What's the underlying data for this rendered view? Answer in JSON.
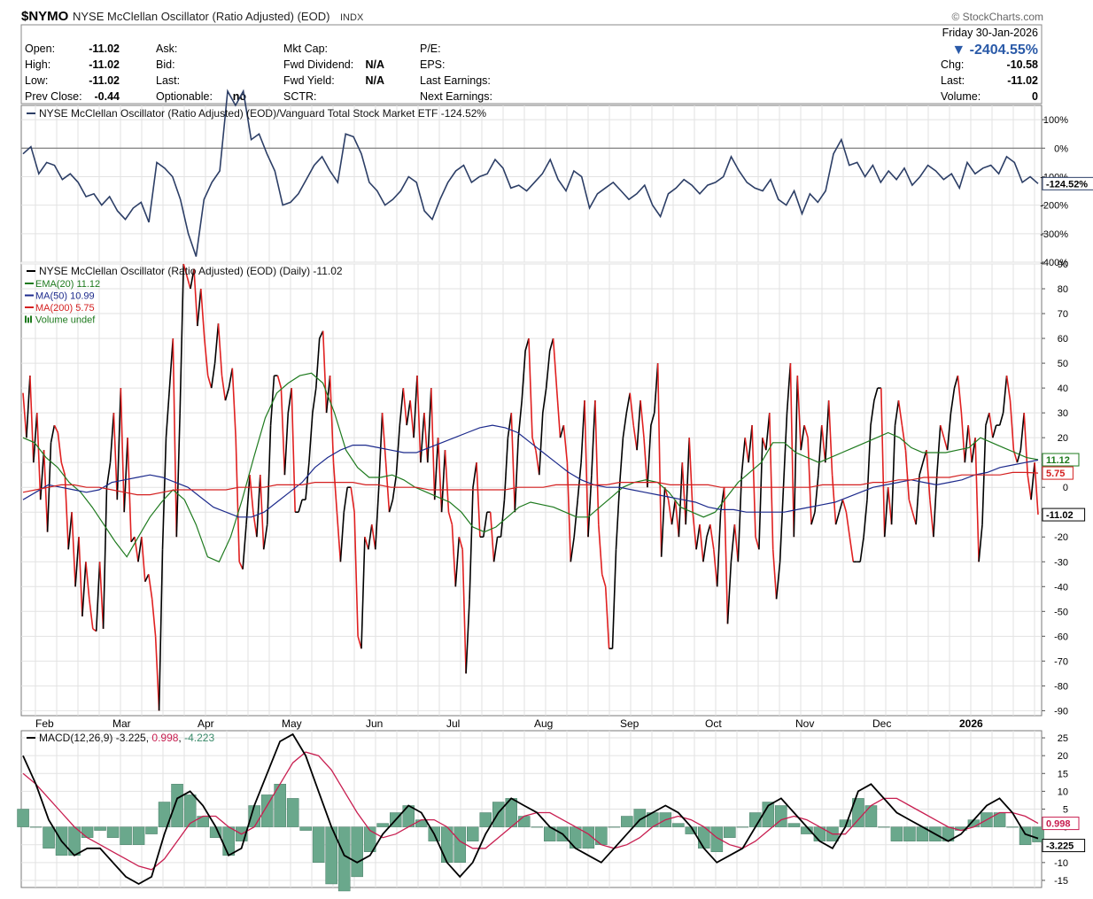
{
  "header": {
    "symbol": "$NYMO",
    "name": "NYSE McClellan Oscillator (Ratio Adjusted) (EOD)",
    "exchange": "INDX",
    "brand": "© StockCharts.com",
    "date": "Friday 30-Jan-2026",
    "pct_change": "▼ -2404.55%",
    "down_color": "#2a5aa8"
  },
  "quote": {
    "open_label": "Open:",
    "open": "-11.02",
    "high_label": "High:",
    "high": "-11.02",
    "low_label": "Low:",
    "low": "-11.02",
    "prev_close_label": "Prev Close:",
    "prev_close": "-0.44",
    "ask_label": "Ask:",
    "bid_label": "Bid:",
    "last_label": "Last:",
    "optionable_label": "Optionable:",
    "optionable": "no",
    "mkt_cap_label": "Mkt Cap:",
    "fwd_dividend_label": "Fwd Dividend:",
    "fwd_dividend": "N/A",
    "fwd_yield_label": "Fwd Yield:",
    "fwd_yield": "N/A",
    "sctr_label": "SCTR:",
    "pe_label": "P/E:",
    "eps_label": "EPS:",
    "last_earnings_label": "Last Earnings:",
    "next_earnings_label": "Next Earnings:",
    "chg_label": "Chg:",
    "chg": "-10.58",
    "last2_label": "Last:",
    "last": "-11.02",
    "volume_label": "Volume:",
    "volume": "0"
  },
  "chart_data": [
    {
      "type": "line",
      "panel": "relative-strength",
      "title": "NYSE McClellan Oscillator (Ratio Adjusted) (EOD)/Vanguard Total Stock Market ETF -124.52%",
      "y_ticks": [
        "100%",
        "0%",
        "-100%",
        "-200%",
        "-300%",
        "-400%"
      ],
      "ylim": [
        -400,
        150
      ],
      "last_value_label": "-124.52%",
      "series": [
        {
          "name": "NYSE McClellan Oscillator (Ratio Adjusted) (EOD)/Vanguard Total Stock Market ETF",
          "color": "#2c3e66",
          "values": [
            -20,
            5,
            -90,
            -50,
            -60,
            -110,
            -90,
            -120,
            -170,
            -160,
            -200,
            -170,
            -220,
            -250,
            -210,
            -190,
            -260,
            -50,
            -70,
            -100,
            -180,
            -300,
            -380,
            -180,
            -120,
            -80,
            200,
            150,
            200,
            30,
            50,
            -20,
            -80,
            -200,
            -190,
            -160,
            -110,
            -60,
            -30,
            -80,
            -120,
            50,
            40,
            -20,
            -120,
            -150,
            -200,
            -180,
            -150,
            -100,
            -120,
            -220,
            -250,
            -180,
            -120,
            -80,
            -60,
            -120,
            -100,
            -90,
            -40,
            -70,
            -140,
            -130,
            -150,
            -120,
            -90,
            -40,
            -110,
            -150,
            -80,
            -100,
            -210,
            -160,
            -140,
            -120,
            -150,
            -180,
            -160,
            -130,
            -200,
            -240,
            -160,
            -140,
            -110,
            -130,
            -160,
            -130,
            -120,
            -100,
            -30,
            -80,
            -120,
            -140,
            -150,
            -110,
            -180,
            -200,
            -150,
            -230,
            -160,
            -190,
            -150,
            -20,
            30,
            -60,
            -50,
            -100,
            -60,
            -120,
            -80,
            -110,
            -70,
            -130,
            -100,
            -60,
            -80,
            -110,
            -90,
            -140,
            -50,
            -90,
            -70,
            -60,
            -90,
            -30,
            -50,
            -120,
            -100,
            -124.52
          ]
        }
      ]
    },
    {
      "type": "line",
      "panel": "main",
      "title": "NYSE McClellan Oscillator (Ratio Adjusted) (EOD) (Daily) -11.02",
      "x_ticks": [
        "Feb",
        "Mar",
        "Apr",
        "May",
        "Jun",
        "Jul",
        "Aug",
        "Sep",
        "Oct",
        "Nov",
        "Dec",
        "2026"
      ],
      "y_ticks": [
        "90",
        "80",
        "70",
        "60",
        "50",
        "40",
        "30",
        "20",
        "10",
        "0",
        "-10",
        "-20",
        "-30",
        "-40",
        "-50",
        "-60",
        "-70",
        "-80",
        "-90"
      ],
      "ylim": [
        -92,
        90
      ],
      "grid": true,
      "up_color": "#000000",
      "down_color": "#e02020",
      "series": [
        {
          "name": "NYSE McClellan Oscillator (Ratio Adjusted) (EOD) (Daily)",
          "label": "NYSE McClellan Oscillator (Ratio Adjusted) (EOD) (Daily) -11.02",
          "color": "#000000",
          "values": [
            38,
            20,
            45,
            10,
            30,
            -5,
            15,
            -18,
            18,
            25,
            22,
            10,
            5,
            -25,
            -10,
            -40,
            -20,
            -52,
            -30,
            -45,
            -57,
            -58,
            -30,
            -57,
            0,
            10,
            30,
            -5,
            40,
            -10,
            20,
            -22,
            -20,
            -30,
            -20,
            -38,
            -35,
            -45,
            -60,
            -90,
            -25,
            20,
            40,
            60,
            -20,
            30,
            90,
            85,
            80,
            88,
            65,
            80,
            60,
            45,
            40,
            50,
            66,
            45,
            35,
            40,
            48,
            20,
            -30,
            -33,
            -15,
            5,
            -10,
            -20,
            5,
            -25,
            -15,
            25,
            45,
            45,
            40,
            5,
            30,
            40,
            -10,
            -10,
            -5,
            -5,
            10,
            30,
            40,
            60,
            63,
            30,
            45,
            10,
            -10,
            -30,
            -10,
            0,
            0,
            -10,
            -60,
            -65,
            -20,
            -25,
            -15,
            -25,
            0,
            30,
            10,
            -10,
            -5,
            5,
            25,
            40,
            25,
            35,
            20,
            45,
            10,
            30,
            10,
            40,
            -5,
            20,
            -10,
            15,
            -10,
            -15,
            -40,
            -20,
            -25,
            -75,
            -45,
            0,
            10,
            -20,
            -20,
            -10,
            -10,
            -30,
            -20,
            -20,
            -5,
            20,
            30,
            -10,
            20,
            35,
            55,
            60,
            20,
            15,
            5,
            30,
            40,
            55,
            60,
            40,
            20,
            25,
            10,
            -30,
            -20,
            -5,
            10,
            35,
            -20,
            5,
            35,
            -15,
            -35,
            -40,
            -65,
            -65,
            -25,
            0,
            20,
            30,
            38,
            25,
            15,
            35,
            20,
            0,
            25,
            30,
            50,
            -28,
            0,
            -5,
            -15,
            -5,
            -20,
            10,
            -15,
            20,
            -10,
            -25,
            -15,
            -30,
            -20,
            -15,
            -25,
            -40,
            -10,
            0,
            -55,
            -30,
            -15,
            -30,
            5,
            20,
            10,
            25,
            -20,
            -25,
            20,
            15,
            30,
            -25,
            -45,
            -30,
            0,
            30,
            50,
            -20,
            45,
            15,
            25,
            20,
            -15,
            -10,
            5,
            25,
            10,
            35,
            5,
            -15,
            -10,
            -5,
            -10,
            -20,
            -30,
            -30,
            -30,
            -20,
            -5,
            25,
            35,
            40,
            40,
            -20,
            0,
            -15,
            25,
            35,
            25,
            15,
            -5,
            -10,
            -15,
            5,
            10,
            15,
            -5,
            -20,
            5,
            25,
            20,
            15,
            30,
            40,
            45,
            30,
            10,
            25,
            10,
            20,
            -30,
            -15,
            25,
            30,
            20,
            25,
            25,
            30,
            45,
            35,
            15,
            10,
            15,
            30,
            5,
            -5,
            10,
            -11.02
          ]
        },
        {
          "name": "EMA(20)",
          "label": "EMA(20) 11.12",
          "color": "#1e7a1e",
          "last_value_label": "11.12",
          "values": [
            20,
            18,
            12,
            8,
            2,
            -2,
            -8,
            -15,
            -22,
            -28,
            -20,
            -12,
            -6,
            -1,
            -5,
            -15,
            -28,
            -30,
            -20,
            -5,
            12,
            28,
            38,
            42,
            45,
            46,
            42,
            30,
            15,
            8,
            4,
            4,
            5,
            3,
            0,
            -2,
            -4,
            -6,
            -10,
            -16,
            -18,
            -16,
            -12,
            -8,
            -6,
            -7,
            -8,
            -10,
            -12,
            -12,
            -8,
            -4,
            0,
            2,
            3,
            2,
            -2,
            -8,
            -10,
            -12,
            -10,
            -4,
            2,
            6,
            10,
            18,
            18,
            14,
            12,
            10,
            12,
            14,
            16,
            18,
            20,
            22,
            20,
            16,
            14,
            14,
            14,
            15,
            16,
            20,
            18,
            16,
            14,
            12,
            11.12
          ]
        },
        {
          "name": "MA(50)",
          "label": "MA(50) 10.99",
          "color": "#1c2a8c",
          "last_value_label": "",
          "values": [
            -5,
            -2,
            1,
            0,
            -1,
            -2,
            -1,
            2,
            3,
            4,
            5,
            4,
            2,
            0,
            -4,
            -8,
            -10,
            -12,
            -12,
            -10,
            -6,
            -2,
            2,
            8,
            12,
            15,
            17,
            17,
            16,
            15,
            14,
            14,
            16,
            18,
            20,
            22,
            24,
            25,
            24,
            22,
            18,
            14,
            10,
            6,
            3,
            1,
            0,
            0,
            -1,
            -2,
            -3,
            -4,
            -5,
            -6,
            -8,
            -9,
            -9,
            -10,
            -10,
            -10,
            -10,
            -9,
            -8,
            -7,
            -6,
            -4,
            -2,
            0,
            1,
            2,
            3,
            2,
            1,
            2,
            3,
            5,
            6,
            8,
            9,
            10,
            10.99
          ]
        },
        {
          "name": "MA(200)",
          "label": "MA(200) 5.75",
          "color": "#d42020",
          "last_value_label": "5.75",
          "values": [
            -2,
            -1,
            0,
            1,
            1,
            0,
            0,
            -1,
            -2,
            -3,
            -3,
            -2,
            -1,
            -1,
            -1,
            -1,
            -1,
            0,
            0,
            0,
            1,
            1,
            1,
            2,
            2,
            2,
            2,
            1,
            1,
            0,
            0,
            0,
            -1,
            -1,
            -1,
            -1,
            -1,
            -1,
            -1,
            0,
            0,
            0,
            1,
            1,
            1,
            1,
            1,
            2,
            2,
            2,
            2,
            1,
            1,
            1,
            1,
            0,
            0,
            0,
            0,
            0,
            0,
            0,
            0,
            1,
            1,
            1,
            1,
            2,
            2,
            3,
            3,
            4,
            4,
            4,
            5,
            5,
            5,
            5,
            6,
            6,
            5.75
          ]
        }
      ],
      "legend": [
        "EMA(20) 11.12",
        "MA(50) 10.99",
        "MA(200) 5.75",
        "Volume undef"
      ],
      "last_value_label": "-11.02"
    },
    {
      "type": "line",
      "panel": "macd",
      "title": "MACD(12,26,9) -3.225, 0.998, -4.223",
      "y_ticks": [
        "25",
        "20",
        "15",
        "10",
        "5",
        "0",
        "-5",
        "-10",
        "-15"
      ],
      "ylim": [
        -17,
        27
      ],
      "series": [
        {
          "name": "MACD(12,26,9)",
          "label": "MACD(12,26,9) -3.225",
          "color": "#000000",
          "last_value_label": "-3.225",
          "values": [
            20,
            12,
            2,
            -4,
            -8,
            -6,
            -6,
            -10,
            -14,
            -16,
            -14,
            -2,
            8,
            10,
            6,
            0,
            -8,
            -6,
            6,
            15,
            24,
            26,
            20,
            10,
            0,
            -8,
            -10,
            -8,
            -2,
            2,
            6,
            4,
            -2,
            -10,
            -14,
            -10,
            -2,
            4,
            8,
            6,
            4,
            0,
            -2,
            -6,
            -8,
            -10,
            -6,
            -2,
            2,
            4,
            6,
            4,
            0,
            -6,
            -10,
            -8,
            -6,
            0,
            6,
            8,
            4,
            0,
            -4,
            -6,
            0,
            10,
            12,
            8,
            4,
            2,
            0,
            -2,
            -4,
            -2,
            2,
            6,
            8,
            4,
            -2,
            -3.225
          ]
        },
        {
          "name": "Signal",
          "label": "0.998",
          "color": "#c81e50",
          "last_value_label": "0.998",
          "values": [
            15,
            12,
            8,
            4,
            0,
            -3,
            -5,
            -7,
            -9,
            -11,
            -12,
            -9,
            -4,
            1,
            3,
            3,
            0,
            -2,
            0,
            6,
            12,
            18,
            21,
            20,
            16,
            10,
            4,
            -1,
            -3,
            -2,
            0,
            2,
            2,
            0,
            -4,
            -6,
            -6,
            -3,
            0,
            3,
            4,
            4,
            2,
            0,
            -2,
            -5,
            -6,
            -5,
            -3,
            0,
            2,
            3,
            2,
            0,
            -3,
            -5,
            -6,
            -4,
            -1,
            2,
            3,
            2,
            0,
            -2,
            -2,
            2,
            6,
            8,
            8,
            6,
            4,
            2,
            0,
            -1,
            0,
            2,
            4,
            4,
            3,
            0.998
          ]
        },
        {
          "name": "Histogram",
          "label": "-4.223",
          "color": "#6aa88c",
          "last_value_label": "",
          "values": [
            5,
            0,
            -6,
            -8,
            -8,
            -3,
            -1,
            -3,
            -5,
            -5,
            -2,
            7,
            12,
            9,
            3,
            -3,
            -8,
            -4,
            6,
            9,
            12,
            8,
            -1,
            -10,
            -16,
            -18,
            -14,
            -7,
            1,
            4,
            6,
            2,
            -4,
            -10,
            -10,
            -4,
            4,
            7,
            8,
            3,
            0,
            -4,
            -4,
            -6,
            -6,
            -5,
            0,
            3,
            5,
            4,
            4,
            1,
            -2,
            -6,
            -7,
            -3,
            0,
            4,
            7,
            6,
            1,
            -2,
            -4,
            -4,
            2,
            8,
            6,
            0,
            -4,
            -4,
            -4,
            -4,
            -4,
            -1,
            2,
            4,
            4,
            0,
            -5,
            -4.223
          ]
        }
      ]
    }
  ]
}
